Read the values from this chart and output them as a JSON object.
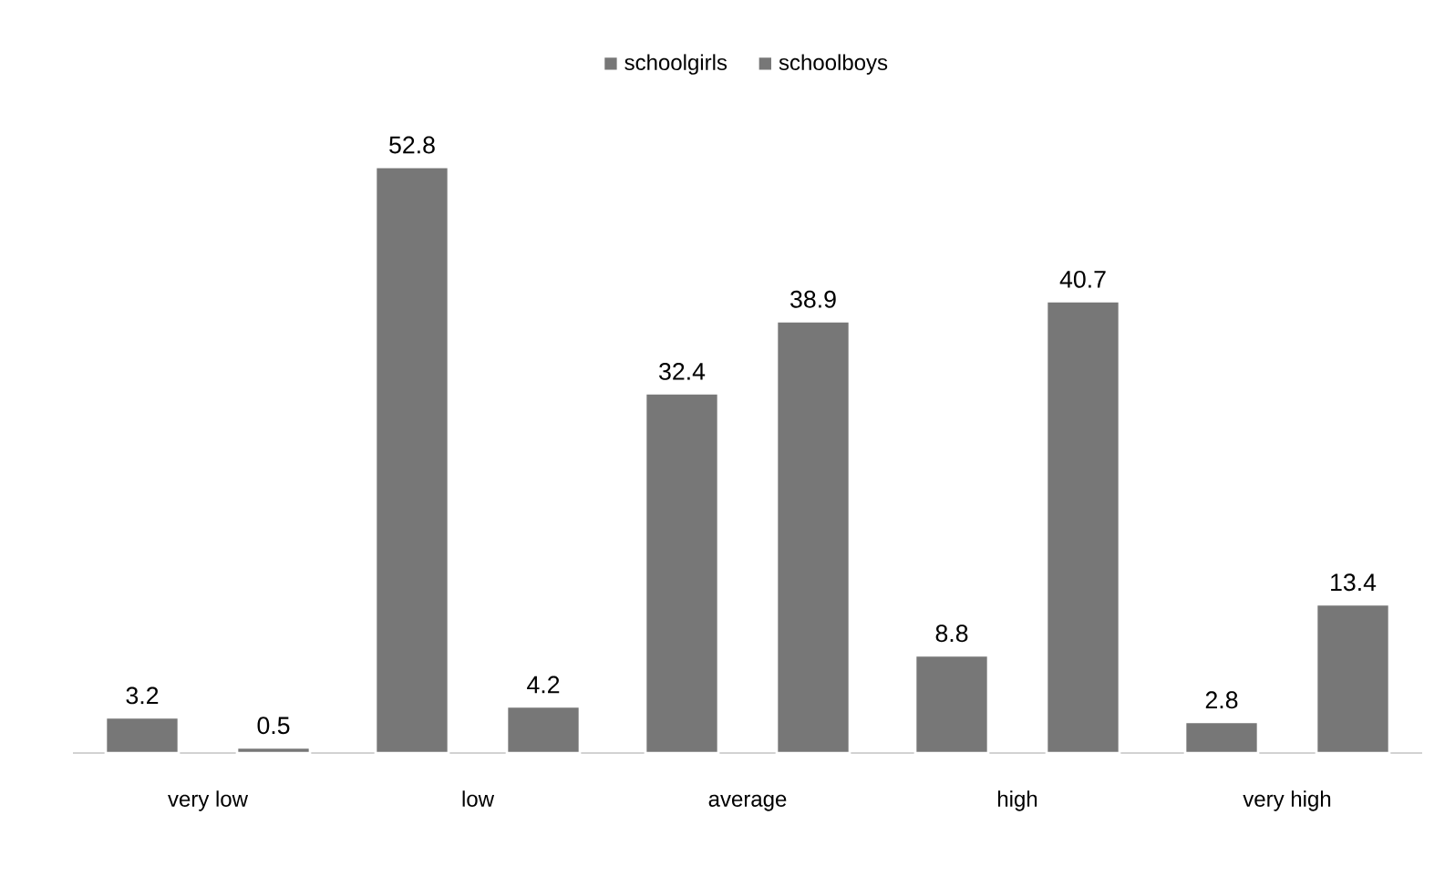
{
  "chart_data": {
    "type": "bar",
    "categories": [
      "very low",
      "low",
      "average",
      "high",
      "very high"
    ],
    "series": [
      {
        "name": "schoolgirls",
        "color": "#777777",
        "values": [
          3.2,
          52.8,
          32.4,
          8.8,
          2.8
        ]
      },
      {
        "name": "schoolboys",
        "color": "#777777",
        "values": [
          0.5,
          4.2,
          38.9,
          40.7,
          13.4
        ]
      }
    ],
    "data_labels": true,
    "legend": "top"
  }
}
